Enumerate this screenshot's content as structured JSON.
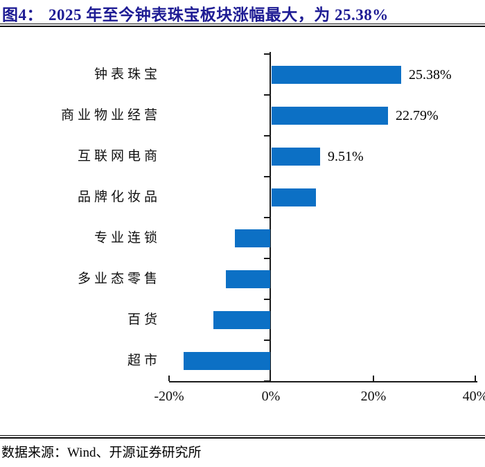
{
  "header": {
    "figure_label": "图4：",
    "title": "2025 年至今钟表珠宝板块涨幅最大，为 25.38%"
  },
  "footer": {
    "source": "数据来源：Wind、开源证券研究所"
  },
  "colors": {
    "title": "#1E1C94",
    "bar": "#0C70C5",
    "axis": "#1A1A1A",
    "text": "#000000"
  },
  "chart_data": {
    "type": "bar",
    "orientation": "horizontal",
    "title": "2025 年至今钟表珠宝板块涨幅最大，为 25.38%",
    "categories": [
      "钟表珠宝",
      "商业物业经营",
      "互联网电商",
      "品牌化妆品",
      "专业连锁",
      "多业态零售",
      "百货",
      "超市"
    ],
    "values": [
      25.38,
      22.79,
      9.51,
      8.7,
      -7.0,
      -8.8,
      -11.2,
      -17.1
    ],
    "data_labels": [
      "25.38%",
      "22.79%",
      "9.51%",
      "",
      "",
      "",
      "",
      ""
    ],
    "x_ticks": [
      {
        "value": -20,
        "label": "-20%"
      },
      {
        "value": 0,
        "label": "0%"
      },
      {
        "value": 20,
        "label": "20%"
      },
      {
        "value": 40,
        "label": "40%"
      }
    ],
    "xlim": [
      -20,
      40
    ],
    "xlabel": "",
    "ylabel": "",
    "grid": false,
    "legend": false,
    "bar_color": "#0C70C5"
  }
}
